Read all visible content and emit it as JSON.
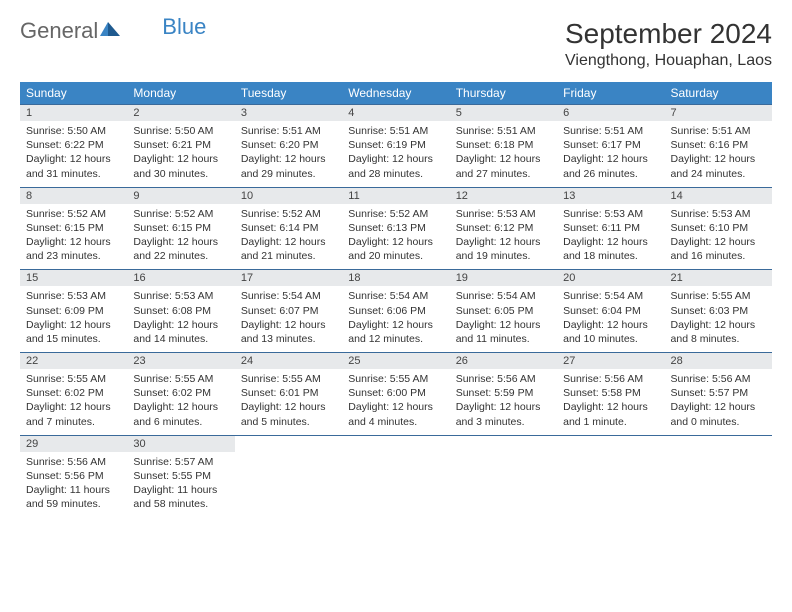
{
  "brand": {
    "part1": "General",
    "part2": "Blue"
  },
  "title": "September 2024",
  "location": "Viengthong, Houaphan, Laos",
  "colors": {
    "header_bg": "#3a84c4",
    "daynum_bg": "#e7e9eb",
    "row_border": "#3a6a9a",
    "text": "#333333",
    "background": "#ffffff"
  },
  "weekdays": [
    "Sunday",
    "Monday",
    "Tuesday",
    "Wednesday",
    "Thursday",
    "Friday",
    "Saturday"
  ],
  "weeks": [
    [
      {
        "n": "1",
        "sr": "Sunrise: 5:50 AM",
        "ss": "Sunset: 6:22 PM",
        "dl": "Daylight: 12 hours and 31 minutes."
      },
      {
        "n": "2",
        "sr": "Sunrise: 5:50 AM",
        "ss": "Sunset: 6:21 PM",
        "dl": "Daylight: 12 hours and 30 minutes."
      },
      {
        "n": "3",
        "sr": "Sunrise: 5:51 AM",
        "ss": "Sunset: 6:20 PM",
        "dl": "Daylight: 12 hours and 29 minutes."
      },
      {
        "n": "4",
        "sr": "Sunrise: 5:51 AM",
        "ss": "Sunset: 6:19 PM",
        "dl": "Daylight: 12 hours and 28 minutes."
      },
      {
        "n": "5",
        "sr": "Sunrise: 5:51 AM",
        "ss": "Sunset: 6:18 PM",
        "dl": "Daylight: 12 hours and 27 minutes."
      },
      {
        "n": "6",
        "sr": "Sunrise: 5:51 AM",
        "ss": "Sunset: 6:17 PM",
        "dl": "Daylight: 12 hours and 26 minutes."
      },
      {
        "n": "7",
        "sr": "Sunrise: 5:51 AM",
        "ss": "Sunset: 6:16 PM",
        "dl": "Daylight: 12 hours and 24 minutes."
      }
    ],
    [
      {
        "n": "8",
        "sr": "Sunrise: 5:52 AM",
        "ss": "Sunset: 6:15 PM",
        "dl": "Daylight: 12 hours and 23 minutes."
      },
      {
        "n": "9",
        "sr": "Sunrise: 5:52 AM",
        "ss": "Sunset: 6:15 PM",
        "dl": "Daylight: 12 hours and 22 minutes."
      },
      {
        "n": "10",
        "sr": "Sunrise: 5:52 AM",
        "ss": "Sunset: 6:14 PM",
        "dl": "Daylight: 12 hours and 21 minutes."
      },
      {
        "n": "11",
        "sr": "Sunrise: 5:52 AM",
        "ss": "Sunset: 6:13 PM",
        "dl": "Daylight: 12 hours and 20 minutes."
      },
      {
        "n": "12",
        "sr": "Sunrise: 5:53 AM",
        "ss": "Sunset: 6:12 PM",
        "dl": "Daylight: 12 hours and 19 minutes."
      },
      {
        "n": "13",
        "sr": "Sunrise: 5:53 AM",
        "ss": "Sunset: 6:11 PM",
        "dl": "Daylight: 12 hours and 18 minutes."
      },
      {
        "n": "14",
        "sr": "Sunrise: 5:53 AM",
        "ss": "Sunset: 6:10 PM",
        "dl": "Daylight: 12 hours and 16 minutes."
      }
    ],
    [
      {
        "n": "15",
        "sr": "Sunrise: 5:53 AM",
        "ss": "Sunset: 6:09 PM",
        "dl": "Daylight: 12 hours and 15 minutes."
      },
      {
        "n": "16",
        "sr": "Sunrise: 5:53 AM",
        "ss": "Sunset: 6:08 PM",
        "dl": "Daylight: 12 hours and 14 minutes."
      },
      {
        "n": "17",
        "sr": "Sunrise: 5:54 AM",
        "ss": "Sunset: 6:07 PM",
        "dl": "Daylight: 12 hours and 13 minutes."
      },
      {
        "n": "18",
        "sr": "Sunrise: 5:54 AM",
        "ss": "Sunset: 6:06 PM",
        "dl": "Daylight: 12 hours and 12 minutes."
      },
      {
        "n": "19",
        "sr": "Sunrise: 5:54 AM",
        "ss": "Sunset: 6:05 PM",
        "dl": "Daylight: 12 hours and 11 minutes."
      },
      {
        "n": "20",
        "sr": "Sunrise: 5:54 AM",
        "ss": "Sunset: 6:04 PM",
        "dl": "Daylight: 12 hours and 10 minutes."
      },
      {
        "n": "21",
        "sr": "Sunrise: 5:55 AM",
        "ss": "Sunset: 6:03 PM",
        "dl": "Daylight: 12 hours and 8 minutes."
      }
    ],
    [
      {
        "n": "22",
        "sr": "Sunrise: 5:55 AM",
        "ss": "Sunset: 6:02 PM",
        "dl": "Daylight: 12 hours and 7 minutes."
      },
      {
        "n": "23",
        "sr": "Sunrise: 5:55 AM",
        "ss": "Sunset: 6:02 PM",
        "dl": "Daylight: 12 hours and 6 minutes."
      },
      {
        "n": "24",
        "sr": "Sunrise: 5:55 AM",
        "ss": "Sunset: 6:01 PM",
        "dl": "Daylight: 12 hours and 5 minutes."
      },
      {
        "n": "25",
        "sr": "Sunrise: 5:55 AM",
        "ss": "Sunset: 6:00 PM",
        "dl": "Daylight: 12 hours and 4 minutes."
      },
      {
        "n": "26",
        "sr": "Sunrise: 5:56 AM",
        "ss": "Sunset: 5:59 PM",
        "dl": "Daylight: 12 hours and 3 minutes."
      },
      {
        "n": "27",
        "sr": "Sunrise: 5:56 AM",
        "ss": "Sunset: 5:58 PM",
        "dl": "Daylight: 12 hours and 1 minute."
      },
      {
        "n": "28",
        "sr": "Sunrise: 5:56 AM",
        "ss": "Sunset: 5:57 PM",
        "dl": "Daylight: 12 hours and 0 minutes."
      }
    ],
    [
      {
        "n": "29",
        "sr": "Sunrise: 5:56 AM",
        "ss": "Sunset: 5:56 PM",
        "dl": "Daylight: 11 hours and 59 minutes."
      },
      {
        "n": "30",
        "sr": "Sunrise: 5:57 AM",
        "ss": "Sunset: 5:55 PM",
        "dl": "Daylight: 11 hours and 58 minutes."
      },
      null,
      null,
      null,
      null,
      null
    ]
  ]
}
